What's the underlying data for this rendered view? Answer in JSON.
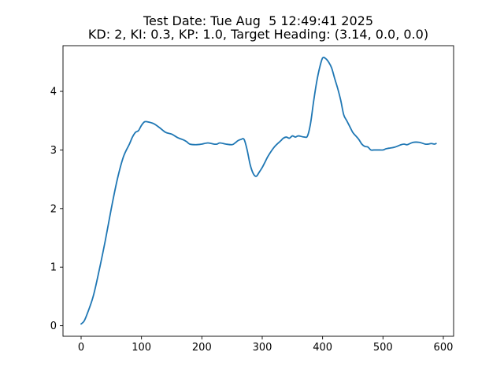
{
  "chart_data": {
    "type": "line",
    "title": "Test Date: Tue Aug  5 12:49:41 2025",
    "subtitle": "KD: 2, KI: 0.3, KP: 1.0, Target Heading: (3.14, 0.0, 0.0)",
    "xlabel": "",
    "ylabel": "",
    "xlim": [
      -30,
      617
    ],
    "ylim": [
      -0.18,
      4.78
    ],
    "xticks": [
      0,
      100,
      200,
      300,
      400,
      500,
      600
    ],
    "yticks": [
      0,
      1,
      2,
      3,
      4
    ],
    "grid": false,
    "legend": "none",
    "series": [
      {
        "color": "#1f77b4",
        "x": [
          0,
          5,
          10,
          20,
          30,
          40,
          50,
          60,
          70,
          80,
          85,
          90,
          95,
          100,
          105,
          110,
          120,
          130,
          140,
          150,
          160,
          170,
          175,
          180,
          190,
          200,
          210,
          220,
          225,
          230,
          240,
          250,
          255,
          260,
          265,
          270,
          275,
          280,
          285,
          290,
          295,
          300,
          305,
          310,
          320,
          330,
          335,
          340,
          345,
          350,
          355,
          360,
          370,
          375,
          380,
          385,
          390,
          395,
          400,
          405,
          410,
          415,
          420,
          425,
          430,
          435,
          440,
          445,
          450,
          455,
          460,
          465,
          470,
          475,
          480,
          485,
          490,
          495,
          500,
          505,
          510,
          520,
          530,
          535,
          540,
          550,
          560,
          570,
          575,
          580,
          585,
          588
        ],
        "values": [
          0.03,
          0.08,
          0.2,
          0.5,
          0.95,
          1.45,
          2.0,
          2.5,
          2.88,
          3.1,
          3.22,
          3.3,
          3.33,
          3.42,
          3.48,
          3.48,
          3.45,
          3.38,
          3.3,
          3.27,
          3.21,
          3.17,
          3.14,
          3.1,
          3.09,
          3.1,
          3.12,
          3.1,
          3.1,
          3.12,
          3.1,
          3.09,
          3.12,
          3.16,
          3.18,
          3.18,
          3.0,
          2.75,
          2.6,
          2.55,
          2.62,
          2.7,
          2.8,
          2.9,
          3.05,
          3.15,
          3.2,
          3.22,
          3.2,
          3.24,
          3.22,
          3.24,
          3.22,
          3.24,
          3.45,
          3.82,
          4.15,
          4.4,
          4.57,
          4.56,
          4.5,
          4.4,
          4.22,
          4.05,
          3.85,
          3.6,
          3.5,
          3.4,
          3.3,
          3.24,
          3.18,
          3.1,
          3.06,
          3.05,
          3.0,
          3.0,
          3.0,
          3.0,
          3.0,
          3.02,
          3.03,
          3.05,
          3.09,
          3.1,
          3.09,
          3.13,
          3.13,
          3.1,
          3.1,
          3.11,
          3.1,
          3.11
        ]
      }
    ]
  },
  "style": {
    "line_color": "#1f77b4",
    "axes_color": "#000000",
    "background": "#ffffff"
  }
}
